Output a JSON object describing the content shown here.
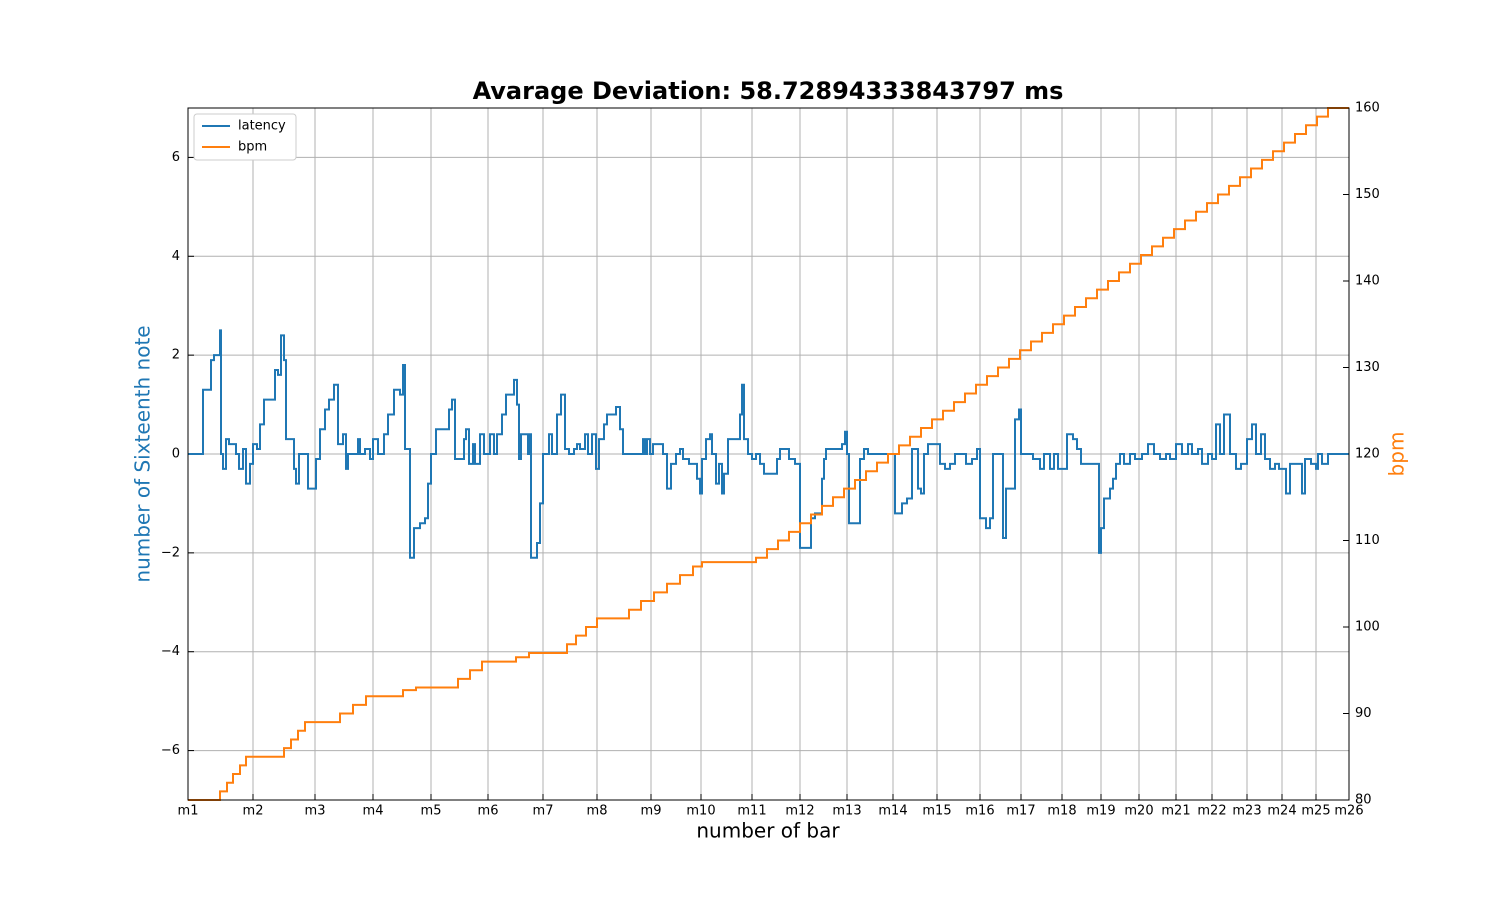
{
  "chart_data": {
    "type": "line",
    "title": "Avarage Deviation: 58.72894333843797 ms",
    "xlabel": "number of bar",
    "ylabel": "number of Sixteenth note",
    "y2label": "bpm",
    "xlim": [
      0,
      1161
    ],
    "xticks": [
      {
        "value": 0,
        "label": "m1"
      },
      {
        "value": 65,
        "label": "m2"
      },
      {
        "value": 127,
        "label": "m3"
      },
      {
        "value": 185,
        "label": "m4"
      },
      {
        "value": 243,
        "label": "m5"
      },
      {
        "value": 300,
        "label": "m6"
      },
      {
        "value": 355,
        "label": "m7"
      },
      {
        "value": 409,
        "label": "m8"
      },
      {
        "value": 463,
        "label": "m9"
      },
      {
        "value": 513,
        "label": "m10"
      },
      {
        "value": 564,
        "label": "m11"
      },
      {
        "value": 612,
        "label": "m12"
      },
      {
        "value": 659,
        "label": "m13"
      },
      {
        "value": 705,
        "label": "m14"
      },
      {
        "value": 749,
        "label": "m15"
      },
      {
        "value": 792,
        "label": "m16"
      },
      {
        "value": 833,
        "label": "m17"
      },
      {
        "value": 874,
        "label": "m18"
      },
      {
        "value": 913,
        "label": "m19"
      },
      {
        "value": 951,
        "label": "m20"
      },
      {
        "value": 988,
        "label": "m21"
      },
      {
        "value": 1024,
        "label": "m22"
      },
      {
        "value": 1059,
        "label": "m23"
      },
      {
        "value": 1094,
        "label": "m24"
      },
      {
        "value": 1128,
        "label": "m25"
      },
      {
        "value": 1161,
        "label": "m26"
      }
    ],
    "ylim": [
      -7,
      7
    ],
    "yticks": [
      {
        "value": -6,
        "label": "−6"
      },
      {
        "value": -4,
        "label": "−4"
      },
      {
        "value": -2,
        "label": "−2"
      },
      0,
      2,
      4,
      6
    ],
    "y2lim": [
      80,
      160
    ],
    "y2ticks": [
      80,
      90,
      100,
      110,
      120,
      130,
      140,
      150,
      160
    ],
    "grid": true,
    "legend": "upper left",
    "step": "post",
    "series": [
      {
        "name": "latency",
        "color": "#1f77b4",
        "x": [
          0,
          8,
          15,
          23,
          26,
          32,
          33,
          35,
          38,
          41,
          48,
          51,
          55,
          58,
          62,
          65,
          69,
          72,
          76,
          87,
          90,
          93,
          96,
          98,
          104,
          106,
          108,
          111,
          116,
          120,
          125,
          128,
          132,
          137,
          141,
          146,
          150,
          155,
          158,
          160,
          170,
          172,
          177,
          182,
          185,
          190,
          196,
          200,
          206,
          212,
          215,
          217,
          222,
          226,
          232,
          237,
          240,
          243,
          248,
          257,
          261,
          264,
          267,
          273,
          276,
          278,
          281,
          285,
          287,
          292,
          296,
          302,
          306,
          309,
          314,
          318,
          326,
          329,
          331,
          333,
          340,
          342,
          343,
          349,
          352,
          355,
          361,
          364,
          369,
          373,
          377,
          381,
          386,
          389,
          392,
          397,
          400,
          404,
          408,
          411,
          416,
          419,
          428,
          432,
          435,
          453,
          455,
          457,
          459,
          462,
          465,
          471,
          475,
          479,
          483,
          488,
          492,
          495,
          501,
          509,
          512,
          514,
          518,
          522,
          524,
          528,
          531,
          534,
          536,
          540,
          549,
          552,
          554,
          556,
          560,
          564,
          568,
          572,
          576,
          584,
          589,
          592,
          597,
          601,
          607,
          612,
          620,
          623,
          627,
          632,
          634,
          636,
          638,
          654,
          657,
          659,
          661,
          668,
          672,
          676,
          680,
          705,
          707,
          711,
          714,
          719,
          724,
          727,
          730,
          733,
          736,
          740,
          749,
          752,
          757,
          762,
          767,
          774,
          778,
          784,
          789,
          792,
          798,
          802,
          805,
          812,
          815,
          818,
          822,
          827,
          831,
          833,
          841,
          845,
          852,
          856,
          862,
          866,
          870,
          874,
          879,
          885,
          889,
          893,
          907,
          911,
          913,
          916,
          922,
          925,
          928,
          932,
          936,
          942,
          947,
          954,
          960,
          966,
          972,
          978,
          982,
          988,
          994,
          1000,
          1004,
          1010,
          1014,
          1020,
          1024,
          1028,
          1032,
          1036,
          1042,
          1048,
          1053,
          1059,
          1064,
          1068,
          1073,
          1077,
          1082,
          1087,
          1091,
          1098,
          1102,
          1108,
          1114,
          1117,
          1123,
          1128,
          1130,
          1134,
          1140,
          1161
        ],
        "values": [
          0,
          0,
          1.3,
          1.9,
          2.0,
          2.5,
          0,
          -0.3,
          0.3,
          0.2,
          0,
          -0.3,
          0.1,
          -0.6,
          -0.2,
          0.2,
          0.1,
          0.6,
          1.1,
          1.7,
          1.6,
          2.4,
          1.9,
          0.3,
          0.3,
          -0.3,
          -0.6,
          0,
          0,
          -0.7,
          -0.7,
          -0.1,
          0.5,
          0.9,
          1.1,
          1.4,
          0.2,
          0.4,
          -0.3,
          0,
          0.3,
          0,
          0.1,
          -0.1,
          0.3,
          0,
          0.4,
          0.8,
          1.3,
          1.2,
          1.8,
          0.1,
          -2.1,
          -1.5,
          -1.4,
          -1.3,
          -0.6,
          0,
          0.5,
          0.5,
          0.9,
          1.1,
          -0.1,
          -0.1,
          0.3,
          0.5,
          -0.2,
          0.2,
          -0.2,
          0.4,
          0,
          0.4,
          0,
          0.4,
          0.8,
          1.2,
          1.5,
          1.0,
          -0.1,
          0.4,
          0,
          0.4,
          -2.1,
          -1.8,
          -1.0,
          0,
          0.4,
          0,
          0.8,
          1.2,
          0.1,
          0,
          0.1,
          0.2,
          0.1,
          0.4,
          0,
          0.4,
          -0.3,
          0.3,
          0.6,
          0.8,
          0.95,
          0.5,
          0,
          0,
          0.3,
          0,
          0.3,
          0,
          0.2,
          0.2,
          0,
          -0.7,
          -0.2,
          0,
          0.1,
          -0.1,
          -0.2,
          -0.5,
          -0.8,
          -0.1,
          0.3,
          0.4,
          0,
          -0.6,
          -0.2,
          -0.8,
          -0.4,
          0.3,
          0.3,
          0.8,
          1.4,
          0.3,
          0,
          -0.1,
          0,
          -0.2,
          -0.4,
          -0.4,
          -0.1,
          0.1,
          0.1,
          -0.1,
          -0.2,
          -1.9,
          -1.9,
          -1.3,
          -1.2,
          -1.2,
          -0.5,
          -0.1,
          0.1,
          0.2,
          0.45,
          0,
          -1.4,
          -1.4,
          -0.1,
          0.1,
          0,
          0,
          -1.2,
          -1.2,
          -1.0,
          -0.9,
          0.1,
          0.1,
          -0.7,
          -0.8,
          0,
          0.2,
          0.2,
          -0.2,
          -0.3,
          -0.2,
          0,
          0,
          -0.2,
          -0.1,
          0.1,
          -1.3,
          -1.5,
          -1.3,
          0,
          0,
          -1.7,
          -0.7,
          -0.7,
          0.7,
          0.9,
          0,
          0,
          -0.1,
          -0.3,
          0,
          -0.3,
          0,
          -0.3,
          -0.3,
          0.4,
          0.3,
          0.1,
          -0.2,
          -0.2,
          -2.0,
          -1.5,
          -0.9,
          -0.7,
          -0.5,
          -0.2,
          0,
          -0.2,
          0,
          -0.1,
          0,
          0.2,
          0,
          -0.1,
          0,
          -0.1,
          0.2,
          0,
          0.2,
          0,
          0.1,
          -0.2,
          0,
          -0.1,
          0.6,
          0,
          0.8,
          0,
          -0.3,
          -0.2,
          0.3,
          0.6,
          0,
          0.4,
          -0.1,
          -0.3,
          -0.2,
          -0.3,
          -0.8,
          -0.2,
          -0.2,
          -0.8,
          -0.1,
          -0.2,
          -0.3,
          0,
          -0.2,
          0,
          0
        ]
      },
      {
        "name": "bpm",
        "color": "#ff7f0e",
        "axis": "y2",
        "x": [
          0,
          32,
          39,
          45,
          52,
          58,
          96,
          103,
          110,
          117,
          152,
          165,
          178,
          215,
          228,
          270,
          282,
          294,
          328,
          341,
          379,
          388,
          398,
          409,
          441,
          453,
          466,
          479,
          492,
          505,
          514,
          568,
          579,
          590,
          601,
          612,
          623,
          634,
          645,
          656,
          667,
          678,
          689,
          700,
          711,
          722,
          733,
          744,
          755,
          766,
          777,
          788,
          799,
          810,
          821,
          832,
          843,
          854,
          865,
          876,
          887,
          898,
          909,
          920,
          931,
          942,
          953,
          964,
          975,
          986,
          997,
          1008,
          1019,
          1030,
          1041,
          1052,
          1063,
          1074,
          1085,
          1096,
          1107,
          1118,
          1129,
          1140,
          1161
        ],
        "values": [
          80,
          81,
          82,
          83,
          84,
          85,
          86,
          87,
          88,
          89,
          90,
          91,
          92,
          92.7,
          93,
          94,
          95,
          96,
          96.5,
          97,
          98,
          99,
          100,
          101,
          102,
          103,
          104,
          105,
          106,
          107,
          107.5,
          108,
          109,
          110,
          111,
          112,
          113,
          114,
          115,
          116,
          117,
          118,
          119,
          120,
          121,
          122,
          123,
          124,
          125,
          126,
          127,
          128,
          129,
          130,
          131,
          132,
          133,
          134,
          135,
          136,
          137,
          138,
          139,
          140,
          141,
          142,
          143,
          144,
          145,
          146,
          147,
          148,
          149,
          150,
          151,
          152,
          153,
          154,
          155,
          156,
          157,
          158,
          159,
          160,
          160
        ]
      }
    ]
  }
}
